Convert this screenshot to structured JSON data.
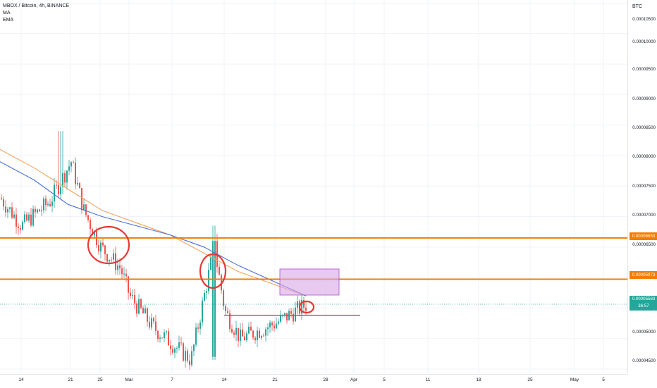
{
  "legend": {
    "symbol": "MBOX / Bitcoin, 4h, BINANCE",
    "ma_label": "MA",
    "ema_label": "EMA"
  },
  "price_axis": {
    "currency": "BTC",
    "labels": [
      "0.00010500",
      "0.00010000",
      "0.00009500",
      "0.00009000",
      "0.00008500",
      "0.00008000",
      "0.00007500",
      "0.00007000",
      "0.00006500",
      "0.00005000",
      "0.00004500"
    ]
  },
  "time_axis": {
    "labels": [
      "14",
      "21",
      "25",
      "Mar",
      "7",
      "14",
      "21",
      "28",
      "Apr",
      "5",
      "11",
      "18",
      "25",
      "May",
      "5"
    ]
  },
  "price_tags": {
    "resistance_1": "0.00006650",
    "resistance_2": "0.00005973",
    "current_price": "0.00005563",
    "countdown": "36:57"
  },
  "colors": {
    "up": "#26a69a",
    "down": "#ef5350",
    "ma": "#4a6fd8",
    "ema": "#f5a25d",
    "hline": "#f57c00",
    "annotation": "#e53935",
    "box_fill": "#d9a7e8",
    "box_stroke": "#b04dd2"
  },
  "chart_data": {
    "type": "candlestick",
    "title": "MBOX / Bitcoin, 4h, BINANCE",
    "ylim": [
      4.42e-05,
      0.0001055
    ],
    "horizontal_levels": [
      6.65e-05,
      5.973e-05
    ],
    "support_line": 5.38e-05,
    "current_price": 5.563e-05,
    "approx_close_path": [
      {
        "x": "Feb 10",
        "y": 7.3e-05
      },
      {
        "x": "Feb 14",
        "y": 6.85e-05
      },
      {
        "x": "Feb 18",
        "y": 7.25e-05
      },
      {
        "x": "Feb 21",
        "y": 7.9e-05
      },
      {
        "x": "Feb 23",
        "y": 7.1e-05
      },
      {
        "x": "Feb 25",
        "y": 6.5e-05
      },
      {
        "x": "Feb 28",
        "y": 6.15e-05
      },
      {
        "x": "Mar 3",
        "y": 5.7e-05
      },
      {
        "x": "Mar 6",
        "y": 5.2e-05
      },
      {
        "x": "Mar 9",
        "y": 4.65e-05
      },
      {
        "x": "Mar 12",
        "y": 6.5e-05
      },
      {
        "x": "Mar 14",
        "y": 5.45e-05
      },
      {
        "x": "Mar 17",
        "y": 5e-05
      },
      {
        "x": "Mar 21",
        "y": 5.25e-05
      },
      {
        "x": "Mar 24",
        "y": 5.56e-05
      }
    ],
    "ma_path": [
      7.9e-05,
      7.6e-05,
      7.2e-05,
      7e-05,
      6.85e-05,
      6.7e-05,
      6.5e-05,
      6.2e-05,
      5.95e-05,
      5.7e-05
    ],
    "ema_path": [
      8.1e-05,
      7.8e-05,
      7.45e-05,
      7.1e-05,
      6.9e-05,
      6.7e-05,
      6.4e-05,
      6.1e-05,
      5.9e-05,
      5.7e-05
    ]
  }
}
